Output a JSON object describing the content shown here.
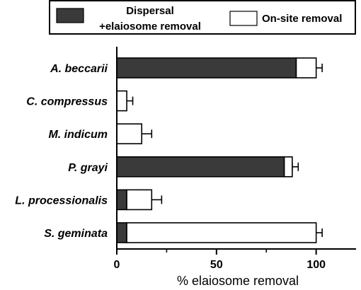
{
  "chart_data": {
    "type": "bar",
    "orientation": "horizontal",
    "stacked": true,
    "categories": [
      "A. beccarii",
      "C. compressus",
      "M. indicum",
      "P. grayi",
      "L. processionalis",
      "S. geminata"
    ],
    "series": [
      {
        "name_lines": [
          "Dispersal",
          "+elaiosome removal"
        ],
        "color": "#3a3a3a",
        "values": [
          90,
          0,
          0,
          84,
          5,
          5
        ],
        "errors": [
          4,
          0,
          0,
          4,
          3,
          3
        ]
      },
      {
        "name_lines": [
          "On-site removal"
        ],
        "color": "#ffffff",
        "values": [
          10,
          5,
          12.5,
          4,
          12.5,
          95
        ],
        "errors": [
          3,
          3,
          5,
          3,
          5,
          3
        ]
      }
    ],
    "xlabel": "% elaiosome removal",
    "xlim": [
      0,
      120
    ],
    "xticks": [
      "0",
      "50",
      "100"
    ],
    "legend_position": "top",
    "grid": false
  }
}
